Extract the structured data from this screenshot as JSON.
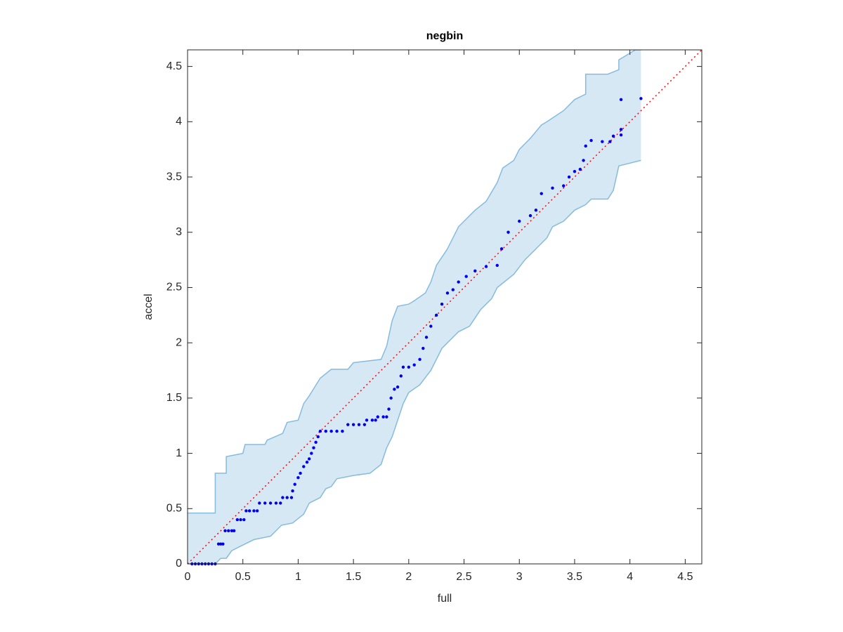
{
  "chart_data": {
    "type": "scatter",
    "title": "negbin",
    "xlabel": "full",
    "ylabel": "accel",
    "xlim": [
      0,
      4.65
    ],
    "ylim": [
      0,
      4.65
    ],
    "xticks": [
      0,
      0.5,
      1,
      1.5,
      2,
      2.5,
      3,
      3.5,
      4,
      4.5
    ],
    "yticks": [
      0,
      0.5,
      1,
      1.5,
      2,
      2.5,
      3,
      3.5,
      4,
      4.5
    ],
    "grid": false,
    "series": [
      {
        "color": "#0000ee",
        "x": [
          0.04,
          0.07,
          0.1,
          0.13,
          0.16,
          0.19,
          0.22,
          0.25,
          0.28,
          0.3,
          0.32,
          0.34,
          0.37,
          0.4,
          0.42,
          0.45,
          0.48,
          0.51,
          0.53,
          0.56,
          0.6,
          0.63,
          0.65,
          0.7,
          0.75,
          0.8,
          0.84,
          0.86,
          0.9,
          0.94,
          0.95,
          0.97,
          1.0,
          1.02,
          1.05,
          1.08,
          1.1,
          1.12,
          1.14,
          1.16,
          1.18,
          1.2,
          1.25,
          1.3,
          1.35,
          1.4,
          1.45,
          1.5,
          1.55,
          1.6,
          1.62,
          1.67,
          1.7,
          1.72,
          1.77,
          1.8,
          1.82,
          1.84,
          1.87,
          1.9,
          1.93,
          1.95,
          2.0,
          2.05,
          2.1,
          2.13,
          2.16,
          2.2,
          2.25,
          2.3,
          2.35,
          2.4,
          2.45,
          2.52,
          2.6,
          2.7,
          2.8,
          2.84,
          2.9,
          3.0,
          3.1,
          3.15,
          3.2,
          3.3,
          3.4,
          3.45,
          3.5,
          3.55,
          3.58,
          3.6,
          3.65,
          3.75,
          3.82,
          3.85,
          3.92,
          3.92,
          3.92,
          4.1
        ],
        "y": [
          0,
          0,
          0,
          0,
          0,
          0,
          0,
          0,
          0.18,
          0.18,
          0.18,
          0.3,
          0.3,
          0.3,
          0.3,
          0.4,
          0.4,
          0.4,
          0.48,
          0.48,
          0.48,
          0.48,
          0.55,
          0.55,
          0.55,
          0.55,
          0.55,
          0.6,
          0.6,
          0.6,
          0.66,
          0.72,
          0.78,
          0.82,
          0.88,
          0.92,
          0.95,
          1.0,
          1.05,
          1.1,
          1.15,
          1.2,
          1.2,
          1.2,
          1.2,
          1.2,
          1.26,
          1.26,
          1.26,
          1.26,
          1.3,
          1.3,
          1.3,
          1.33,
          1.33,
          1.33,
          1.4,
          1.5,
          1.58,
          1.6,
          1.7,
          1.78,
          1.78,
          1.8,
          1.85,
          1.95,
          2.05,
          2.15,
          2.25,
          2.35,
          2.45,
          2.48,
          2.55,
          2.6,
          2.65,
          2.69,
          2.7,
          2.85,
          3.0,
          3.1,
          3.15,
          3.2,
          3.35,
          3.4,
          3.42,
          3.5,
          3.55,
          3.57,
          3.65,
          3.78,
          3.83,
          3.82,
          3.82,
          3.87,
          3.88,
          3.93,
          4.2,
          4.21
        ]
      }
    ],
    "band": {
      "fill": "#d6e8f4",
      "edge": "#86bbdd",
      "upper_x": [
        0,
        0.25,
        0.25,
        0.35,
        0.35,
        0.5,
        0.52,
        0.7,
        0.72,
        0.86,
        0.9,
        1.0,
        1.05,
        1.1,
        1.15,
        1.2,
        1.3,
        1.45,
        1.5,
        1.75,
        1.8,
        1.85,
        1.9,
        2.0,
        2.05,
        2.15,
        2.2,
        2.25,
        2.35,
        2.45,
        2.6,
        2.7,
        2.8,
        2.85,
        2.95,
        3.0,
        3.1,
        3.2,
        3.25,
        3.4,
        3.5,
        3.6,
        3.6,
        3.8,
        3.9,
        3.9,
        4.05,
        4.1
      ],
      "upper_y": [
        0.46,
        0.46,
        0.82,
        0.82,
        0.97,
        1.0,
        1.08,
        1.08,
        1.12,
        1.18,
        1.28,
        1.3,
        1.45,
        1.52,
        1.6,
        1.68,
        1.76,
        1.76,
        1.82,
        1.85,
        1.97,
        2.2,
        2.33,
        2.35,
        2.38,
        2.45,
        2.55,
        2.7,
        2.85,
        3.05,
        3.2,
        3.28,
        3.45,
        3.58,
        3.65,
        3.75,
        3.85,
        3.97,
        4.0,
        4.1,
        4.2,
        4.25,
        4.43,
        4.43,
        4.47,
        4.56,
        4.65,
        4.65
      ],
      "lower_x": [
        0,
        0.25,
        0.3,
        0.35,
        0.4,
        0.5,
        0.6,
        0.75,
        0.85,
        0.95,
        1.05,
        1.1,
        1.2,
        1.25,
        1.3,
        1.35,
        1.5,
        1.65,
        1.75,
        1.8,
        1.85,
        1.9,
        1.95,
        2.0,
        2.1,
        2.2,
        2.3,
        2.45,
        2.55,
        2.65,
        2.75,
        2.8,
        2.95,
        3.05,
        3.15,
        3.25,
        3.3,
        3.4,
        3.5,
        3.6,
        3.65,
        3.8,
        3.85,
        3.9,
        4.1
      ],
      "lower_y": [
        0,
        0,
        0.05,
        0.05,
        0.12,
        0.17,
        0.22,
        0.25,
        0.35,
        0.37,
        0.45,
        0.55,
        0.6,
        0.68,
        0.7,
        0.77,
        0.8,
        0.82,
        0.9,
        1.05,
        1.15,
        1.3,
        1.45,
        1.55,
        1.62,
        1.75,
        1.95,
        2.1,
        2.15,
        2.3,
        2.4,
        2.5,
        2.62,
        2.75,
        2.85,
        2.95,
        3.05,
        3.1,
        3.2,
        3.25,
        3.3,
        3.3,
        3.38,
        3.6,
        3.65
      ]
    },
    "reference_line": {
      "color": "#ff0000",
      "x": [
        0,
        4.65
      ],
      "y": [
        0,
        4.65
      ]
    }
  }
}
